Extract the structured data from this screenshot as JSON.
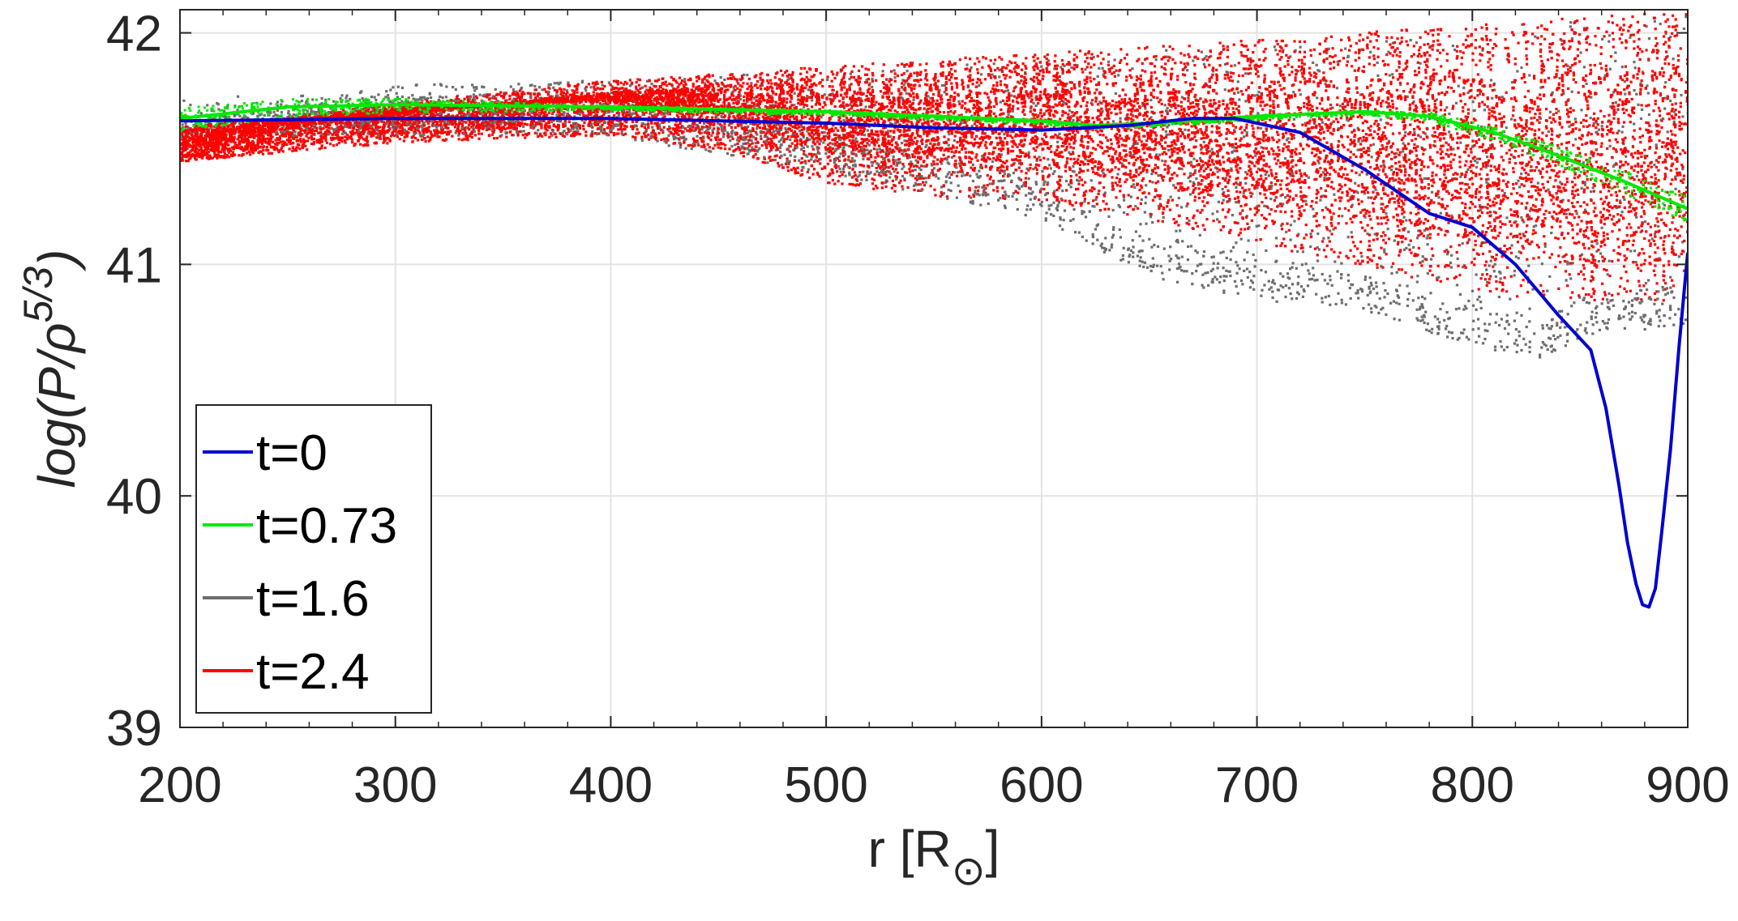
{
  "chart_data": {
    "type": "scatter",
    "xlabel": "r [R",
    "xlabel_sub": "⊙",
    "xlabel_close": "]",
    "ylabel": "log(P/ρ",
    "ylabel_sup": "5/3",
    "ylabel_close": ")",
    "xlim": [
      200,
      900
    ],
    "ylim": [
      39,
      42.1
    ],
    "xticks": [
      "200",
      "300",
      "400",
      "500",
      "600",
      "700",
      "800",
      "900"
    ],
    "yticks": [
      "39",
      "40",
      "41",
      "42"
    ],
    "grid": true,
    "legend_position": "bottom-left",
    "legend": [
      "t=0",
      "t=0.73",
      "t=1.6",
      "t=2.4"
    ],
    "series": [
      {
        "name": "t=0",
        "color": "#0000d0",
        "style": "line",
        "x": [
          200,
          300,
          400,
          500,
          550,
          600,
          640,
          670,
          690,
          720,
          750,
          780,
          800,
          820,
          840,
          855,
          862,
          868,
          872,
          876,
          879,
          882,
          885,
          888,
          892,
          896,
          900
        ],
        "y": [
          41.62,
          41.63,
          41.63,
          41.61,
          41.59,
          41.58,
          41.6,
          41.63,
          41.63,
          41.57,
          41.41,
          41.22,
          41.16,
          41.0,
          40.78,
          40.63,
          40.38,
          40.05,
          39.8,
          39.62,
          39.53,
          39.52,
          39.6,
          39.85,
          40.2,
          40.65,
          41.05
        ]
      },
      {
        "name": "t=0.73",
        "color": "#00e800",
        "style": "band",
        "x": [
          200,
          250,
          300,
          400,
          500,
          600,
          625,
          650,
          700,
          750,
          780,
          810,
          840,
          870,
          900
        ],
        "y": [
          41.63,
          41.68,
          41.69,
          41.68,
          41.66,
          41.62,
          41.6,
          41.61,
          41.64,
          41.66,
          41.64,
          41.57,
          41.47,
          41.36,
          41.24
        ],
        "spread": [
          0.05,
          0.04,
          0.03,
          0.01,
          0.01,
          0.01,
          0.01,
          0.01,
          0.01,
          0.01,
          0.02,
          0.03,
          0.04,
          0.05,
          0.06
        ]
      },
      {
        "name": "t=1.6",
        "color": "#6e6e6e",
        "style": "scatter",
        "x": [
          200,
          300,
          400,
          500,
          600,
          650,
          700,
          750,
          800,
          830,
          860,
          880,
          900
        ],
        "upper": [
          41.62,
          41.78,
          41.8,
          41.84,
          41.9,
          41.93,
          41.96,
          41.98,
          42.02,
          42.05,
          42.07,
          42.08,
          42.08
        ],
        "lower": [
          41.55,
          41.56,
          41.56,
          41.4,
          41.2,
          40.95,
          40.85,
          40.8,
          40.65,
          40.6,
          40.72,
          40.72,
          40.75
        ]
      },
      {
        "name": "t=2.4",
        "color": "#ff0000",
        "style": "scatter",
        "x": [
          200,
          260,
          300,
          350,
          400,
          450,
          500,
          550,
          600,
          650,
          700,
          750,
          800,
          830,
          860,
          880,
          900
        ],
        "upper": [
          41.55,
          41.66,
          41.7,
          41.75,
          41.8,
          41.83,
          41.86,
          41.89,
          41.92,
          41.95,
          41.98,
          42.01,
          42.04,
          42.06,
          42.08,
          42.09,
          42.09
        ],
        "lower": [
          41.45,
          41.5,
          41.53,
          41.55,
          41.56,
          41.5,
          41.35,
          41.3,
          41.28,
          41.2,
          41.1,
          40.98,
          40.9,
          40.85,
          40.85,
          40.85,
          40.85
        ]
      }
    ]
  }
}
